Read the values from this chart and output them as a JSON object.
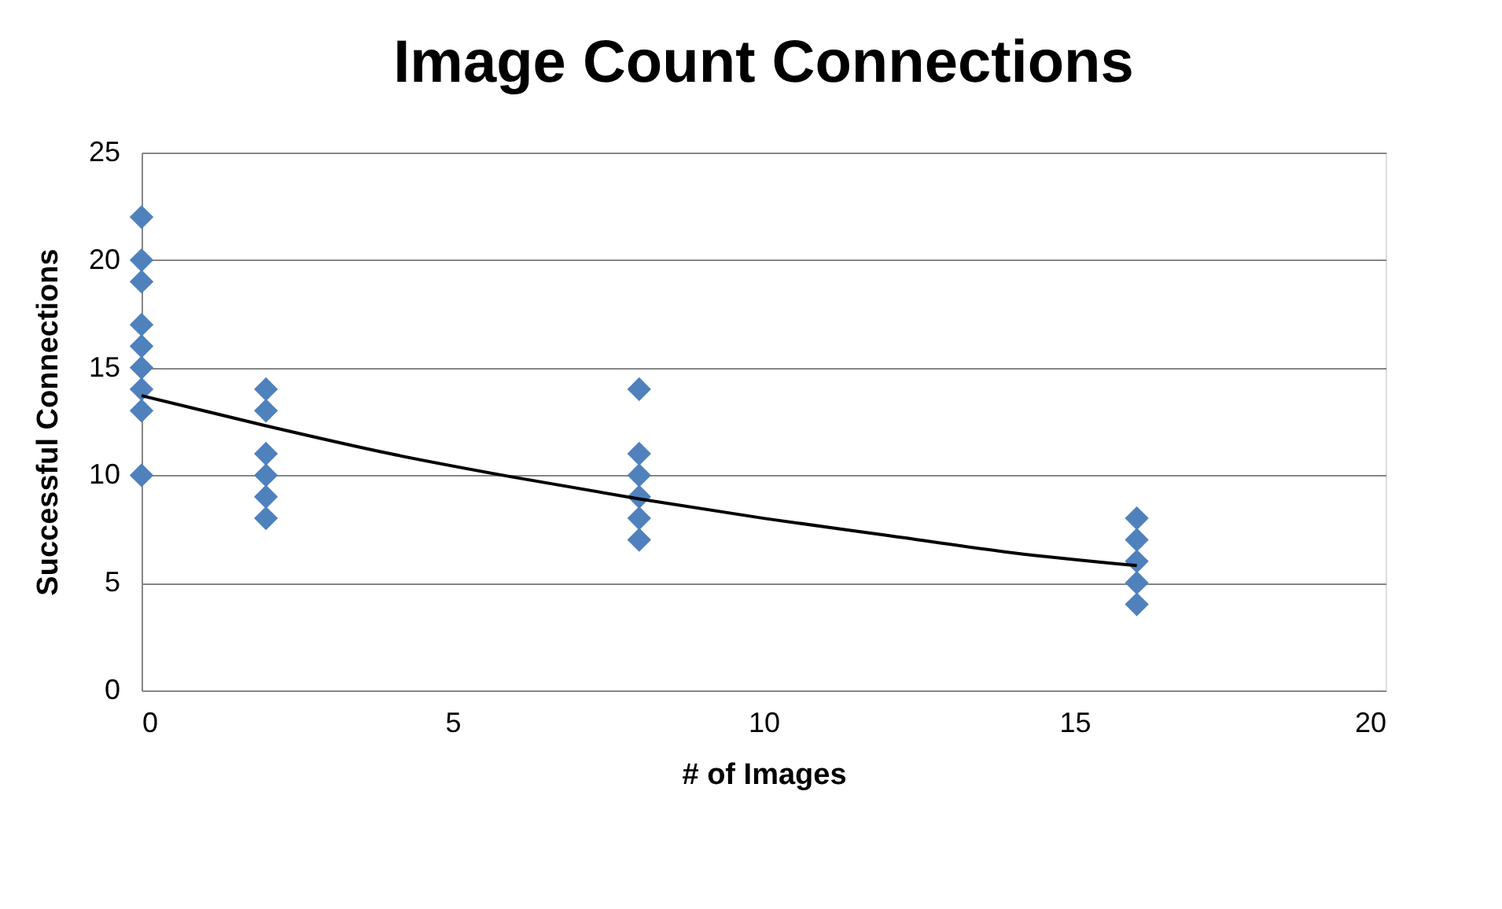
{
  "chart_data": {
    "type": "scatter",
    "title": "Image Count Connections",
    "xlabel": "# of Images",
    "ylabel": "Successful Connections",
    "xlim": [
      0,
      20
    ],
    "xticks": [
      0,
      5,
      10,
      15,
      20
    ],
    "ylim": [
      0,
      25
    ],
    "yticks": [
      0,
      5,
      10,
      15,
      20,
      25
    ],
    "grid": "y",
    "series": [
      {
        "type": "scatter",
        "color": "#4f81bd",
        "marker": "diamond",
        "x": [
          0,
          0,
          0,
          0,
          0,
          0,
          0,
          0,
          0,
          2,
          2,
          2,
          2,
          2,
          2,
          8,
          8,
          8,
          8,
          8,
          8,
          16,
          16,
          16,
          16,
          16
        ],
        "values": [
          22,
          20,
          19,
          17,
          16,
          15,
          14,
          13,
          10,
          14,
          13,
          11,
          10,
          9,
          8,
          14,
          11,
          10,
          9,
          8,
          7,
          8,
          7,
          6,
          5,
          4
        ]
      },
      {
        "type": "line",
        "color": "#000000",
        "marker": "none",
        "line_style": "solid",
        "x": [
          0,
          2,
          4,
          6,
          8,
          10,
          12,
          14,
          16
        ],
        "values": [
          13.7,
          12.3,
          11.0,
          9.9,
          8.9,
          8.0,
          7.2,
          6.4,
          5.8
        ]
      }
    ]
  }
}
